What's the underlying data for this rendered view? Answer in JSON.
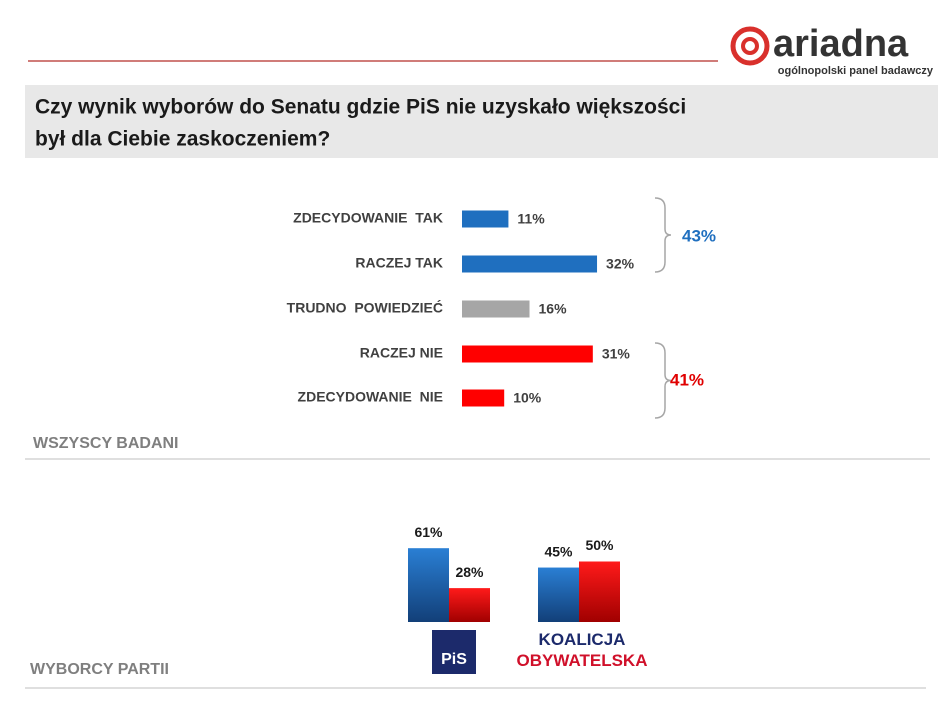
{
  "header": {
    "logo": "ariadna",
    "tagline": "ogólnopolski panel badawczy",
    "title_lines": [
      "Czy wynik wyborów do Senatu gdzie PiS nie uzyskało większości",
      "był dla Ciebie zaskoczeniem?"
    ]
  },
  "chart_data": [
    {
      "type": "hbar",
      "title": "WSZYSCY BADANI",
      "categories": [
        "ZDECYDOWANIE  TAK",
        "RACZEJ TAK",
        "TRUDNO  POWIEDZIEĆ",
        "RACZEJ NIE",
        "ZDECYDOWANIE  NIE"
      ],
      "values": [
        11,
        32,
        16,
        31,
        10
      ],
      "value_labels": [
        "11%",
        "32%",
        "16%",
        "31%",
        "10%"
      ],
      "colors": [
        "#1f6fbf",
        "#1f6fbf",
        "#a6a6a6",
        "#ff0000",
        "#ff0000"
      ],
      "brackets": [
        {
          "value": 43,
          "label": "43%",
          "color": "#1f6fbf"
        },
        {
          "value": 41,
          "label": "41%",
          "color": "#e00000"
        }
      ]
    },
    {
      "type": "bar",
      "title": "WYBORCY PARTII",
      "categories": [
        "PiS",
        "KOALICJA OBYWATELSKA"
      ],
      "series": [
        {
          "color": "#1f6fbf",
          "values": [
            61,
            45
          ],
          "value_labels": [
            "61%",
            "45%"
          ]
        },
        {
          "color": "#ff0000",
          "values": [
            28,
            50
          ],
          "value_labels": [
            "28%",
            "50%"
          ]
        }
      ]
    }
  ]
}
